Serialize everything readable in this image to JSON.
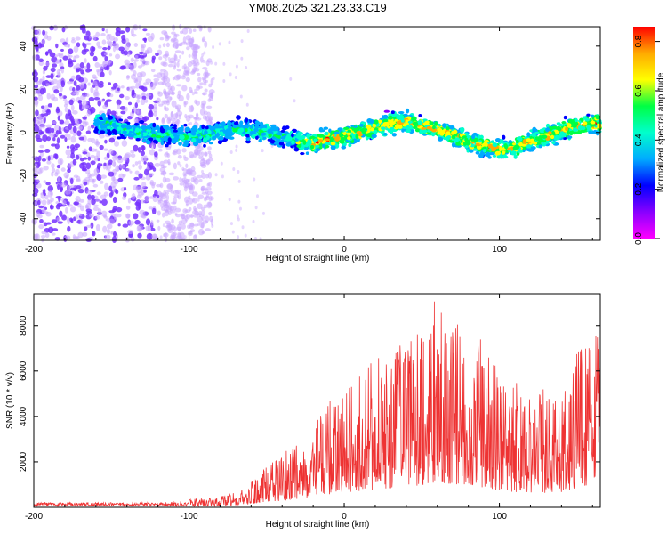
{
  "title": "YM08.2025.321.23.33.C19",
  "colors": {
    "signal_line": "#ee3333",
    "noise_dot": "#c8a6ff",
    "noise_dense": "#7733ff",
    "colorbar": [
      "#ff0000",
      "#ffaa00",
      "#ffff00",
      "#00ff44",
      "#00ffcc",
      "#00aaff",
      "#0000ff",
      "#8800ff",
      "#ff00ff"
    ]
  },
  "chart_data": [
    {
      "type": "heatmap",
      "xlabel": "Height of straight line (km)",
      "ylabel": "Frequency (Hz)",
      "xlim": [
        -200,
        165
      ],
      "ylim": [
        -50,
        49
      ],
      "x_ticks": [
        "-200",
        "-100",
        "0",
        "100"
      ],
      "y_ticks": [
        "40",
        "20",
        "0",
        "-20",
        "-40"
      ],
      "colorbar": {
        "label": "Normalized spectral amplitude",
        "range": [
          0,
          0.86
        ],
        "ticks": [
          "0.8",
          "0.6",
          "0.4",
          "0.2",
          "0.0"
        ]
      },
      "ridge": {
        "x": [
          -160,
          -150,
          -140,
          -130,
          -120,
          -110,
          -100,
          -90,
          -80,
          -70,
          -60,
          -50,
          -40,
          -30,
          -20,
          -10,
          0,
          10,
          20,
          30,
          40,
          50,
          60,
          70,
          80,
          90,
          100,
          110,
          120,
          130,
          140,
          150,
          160
        ],
        "freq": [
          5,
          3,
          1,
          0,
          -1,
          -1,
          -2,
          -1,
          0,
          2,
          1,
          0,
          -2,
          -4,
          -5,
          -3,
          -2,
          0,
          2,
          4,
          5,
          3,
          1,
          -1,
          -4,
          -6,
          -8,
          -7,
          -4,
          -2,
          1,
          3,
          4
        ]
      }
    },
    {
      "type": "line",
      "xlabel": "Height of straight line (km)",
      "ylabel": "SNR (10 * v/v)",
      "xlim": [
        -200,
        165
      ],
      "ylim": [
        0,
        9400
      ],
      "x_ticks": [
        "-200",
        "-100",
        "0",
        "100"
      ],
      "y_ticks": [
        "8000",
        "6000",
        "4000",
        "2000"
      ],
      "series": [
        {
          "name": "SNR",
          "x": [
            -200,
            -180,
            -160,
            -140,
            -120,
            -100,
            -80,
            -70,
            -60,
            -50,
            -40,
            -30,
            -20,
            -10,
            0,
            10,
            20,
            30,
            40,
            50,
            60,
            70,
            80,
            90,
            100,
            110,
            120,
            130,
            140,
            150,
            160
          ],
          "envelope": [
            250,
            250,
            250,
            250,
            250,
            350,
            500,
            700,
            1100,
            1800,
            2300,
            3000,
            3800,
            4600,
            5400,
            6000,
            6500,
            7000,
            7600,
            8100,
            9300,
            8400,
            8100,
            7200,
            6100,
            5600,
            5400,
            5200,
            5400,
            7200,
            8000
          ]
        }
      ]
    }
  ]
}
